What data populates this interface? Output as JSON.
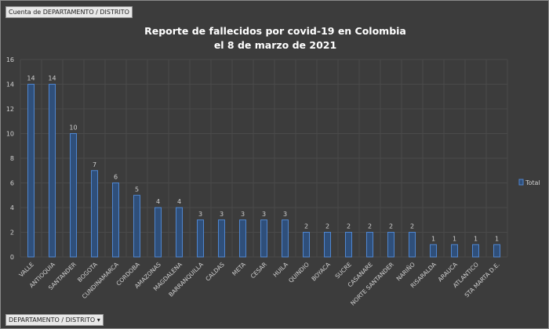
{
  "field_button": "Cuenta de DEPARTAMENTO / DISTRITO",
  "axis_button": "DEPARTAMENTO / DISTRITO",
  "axis_button_icon": "dropdown-arrow-icon",
  "chart_data": {
    "type": "bar",
    "title": [
      "Reporte de fallecidos por covid-19 en Colombia",
      "el 8 de marzo de 2021"
    ],
    "categories": [
      "VALLE",
      "ANTIOQUIA",
      "SANTANDER",
      "BOGOTA",
      "CUNDINAMARCA",
      "CORDOBA",
      "AMAZONAS",
      "MAGDALENA",
      "BARRANQUILLA",
      "CALDAS",
      "META",
      "CESAR",
      "HUILA",
      "QUINDIO",
      "BOYACA",
      "SUCRE",
      "CASANARE",
      "NORTE SANTANDER",
      "NARIÑO",
      "RISARALDA",
      "ARAUCA",
      "ATLANTICO",
      "STA MARTA D.E."
    ],
    "series": [
      {
        "name": "Total",
        "values": [
          14,
          14,
          10,
          7,
          6,
          5,
          4,
          4,
          3,
          3,
          3,
          3,
          3,
          2,
          2,
          2,
          2,
          2,
          2,
          1,
          1,
          1,
          1
        ]
      }
    ],
    "yticks": [
      "0",
      "2",
      "4",
      "6",
      "8",
      "10",
      "12",
      "14",
      "16"
    ],
    "ylim": [
      0,
      16
    ],
    "grid": true,
    "data_labels": true,
    "legend": "right",
    "colors": {
      "bar_fill": "#2f4f7a",
      "bar_stroke": "#4f86d0",
      "background": "#3c3c3c",
      "text": "#d0d0d0"
    }
  }
}
